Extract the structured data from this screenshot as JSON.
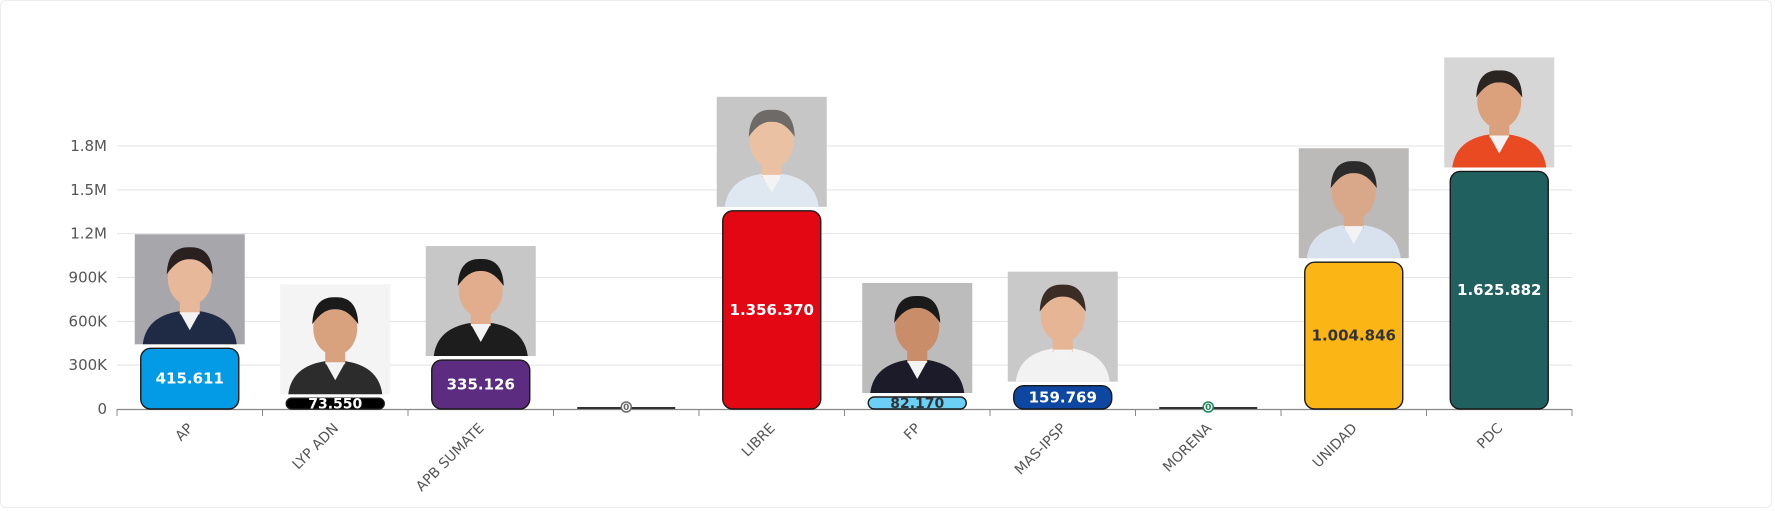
{
  "chart_data": {
    "type": "bar",
    "categories": [
      "AP",
      "LYP ADN",
      "APB SUMATE",
      "",
      "LIBRE",
      "FP",
      "MAS-IPSP",
      "MORENA",
      "UNIDAD",
      "PDC"
    ],
    "values": [
      415611,
      73550,
      335126,
      0,
      1356370,
      82170,
      159769,
      0,
      1004846,
      1625882
    ],
    "value_labels": [
      "415.611",
      "73.550",
      "335.126",
      "0",
      "1.356.370",
      "82.170",
      "159.769",
      "0",
      "1.004.846",
      "1.625.882"
    ],
    "bar_colors": [
      "#039be5",
      "#000000",
      "#5b2c7f",
      "#6b6b6b",
      "#e30613",
      "#6ccff6",
      "#0d47a1",
      "#1b8a5a",
      "#fbb615",
      "#20605f"
    ],
    "label_colors": [
      "#ffffff",
      "#ffffff",
      "#ffffff",
      "#ffffff",
      "#ffffff",
      "#333333",
      "#ffffff",
      "#ffffff",
      "#333333",
      "#ffffff"
    ],
    "candidate_photos": [
      true,
      true,
      true,
      false,
      true,
      true,
      true,
      false,
      true,
      true
    ],
    "ylim": [
      0,
      1800000
    ],
    "yticks": [
      0,
      300000,
      600000,
      900000,
      1200000,
      1500000,
      1800000
    ],
    "ytick_labels": [
      "0",
      "300K",
      "600K",
      "900K",
      "1.2M",
      "1.5M",
      "1.8M"
    ],
    "grid": true,
    "legend": "none",
    "title": "",
    "xlabel": "",
    "ylabel": ""
  }
}
